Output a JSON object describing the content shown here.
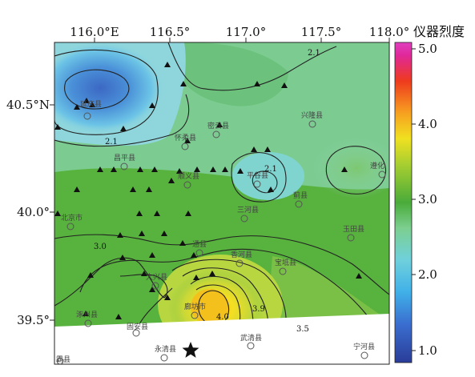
{
  "map": {
    "x_ticks": [
      "116.0°E",
      "116.5°",
      "117.0°",
      "117.5°",
      "118.0°"
    ],
    "y_ticks": [
      "40.5°N",
      "40.0°",
      "39.5°"
    ],
    "colorbar": {
      "title": "仪器烈度",
      "ticks": [
        "5.0",
        "4.0",
        "3.0",
        "2.0",
        "1.0"
      ],
      "range": [
        1.0,
        5.2
      ]
    },
    "contour_labels": [
      "2.1",
      "2.1",
      "2.1",
      "3.0",
      "3.5",
      "3.9",
      "4.0"
    ],
    "cities": [
      "延庆县",
      "怀柔县",
      "密云县",
      "兴隆县",
      "昌平县",
      "顺义县",
      "平谷县",
      "蓟县",
      "遵化",
      "北京市",
      "三河县",
      "玉田县",
      "通县",
      "香河县",
      "宝坻县",
      "大兴县",
      "廊坊市",
      "涿州县",
      "固安县",
      "永清县",
      "武清县",
      "宁河县",
      "霸县"
    ],
    "legend_colors": {
      "magenta": "#e040c0",
      "red": "#e02020",
      "orange": "#f07020",
      "yellow": "#f0e020",
      "green": "#50b030",
      "cyan": "#40b8e0",
      "blue": "#3040a0"
    }
  }
}
